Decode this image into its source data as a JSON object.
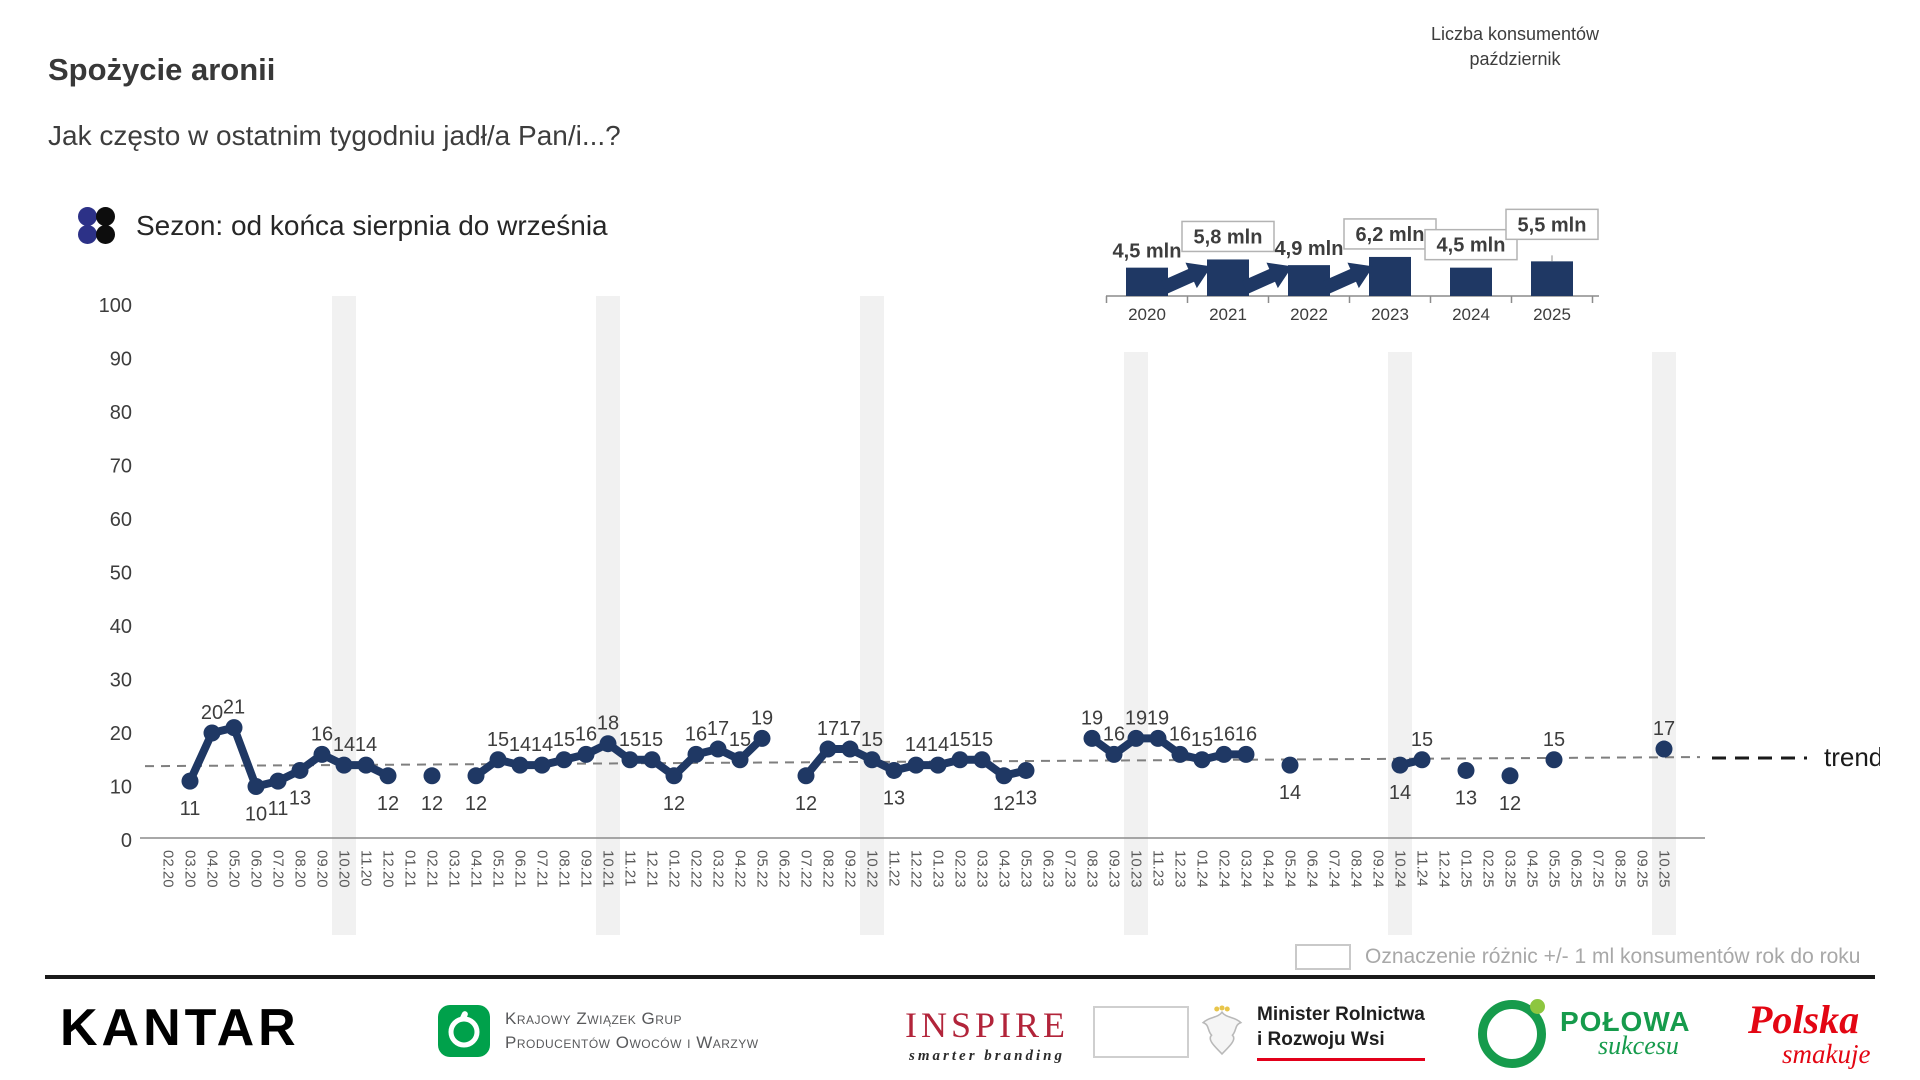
{
  "header": {
    "title": "Spożycie aronii",
    "subtitle": "Jak często w ostatnim tygodniu jadł/a Pan/i...?",
    "season_label": "Sezon: od końca sierpnia do września"
  },
  "colors": {
    "navy": "#1f3864",
    "icon_blue": "#2c3187",
    "icon_black": "#0d0d0d",
    "band_gray": "#f1f1f1",
    "axis_gray": "#8c8c8c",
    "label_dark": "#3d3d3d",
    "tick_gray": "#595959",
    "box_border": "#b3b3b3"
  },
  "chart_data": [
    {
      "type": "line",
      "x": [
        "02.20",
        "03.20",
        "04.20",
        "05.20",
        "06.20",
        "07.20",
        "08.20",
        "09.20",
        "10.20",
        "11.20",
        "12.20",
        "01.21",
        "02.21",
        "03.21",
        "04.21",
        "05.21",
        "06.21",
        "07.21",
        "08.21",
        "09.21",
        "10.21",
        "11.21",
        "12.21",
        "01.22",
        "02.22",
        "03.22",
        "04.22",
        "05.22",
        "06.22",
        "07.22",
        "08.22",
        "09.22",
        "10.22",
        "11.22",
        "12.22",
        "01.23",
        "02.23",
        "03.23",
        "04.23",
        "05.23",
        "06.23",
        "07.23",
        "08.23",
        "09.23",
        "10.23",
        "11.23",
        "12.23",
        "01.24",
        "02.24",
        "03.24",
        "04.24",
        "05.24",
        "06.24",
        "07.24",
        "08.24",
        "09.24",
        "10.24",
        "11.24",
        "12.24",
        "01.25",
        "02.25",
        "03.25",
        "04.25",
        "05.25",
        "06.25",
        "07.25",
        "08.25",
        "09.25",
        "10.25"
      ],
      "values": [
        null,
        11,
        20,
        21,
        10,
        11,
        13,
        16,
        14,
        14,
        12,
        null,
        12,
        null,
        12,
        15,
        14,
        14,
        15,
        16,
        18,
        15,
        15,
        12,
        16,
        17,
        15,
        19,
        null,
        12,
        17,
        17,
        15,
        13,
        14,
        14,
        15,
        15,
        12,
        13,
        null,
        null,
        19,
        16,
        19,
        19,
        16,
        15,
        16,
        16,
        null,
        14,
        null,
        null,
        null,
        null,
        14,
        15,
        null,
        13,
        null,
        12,
        null,
        15,
        null,
        null,
        null,
        null,
        17
      ],
      "label_below_months": [
        "03.20",
        "06.20",
        "07.20",
        "08.20",
        "12.20",
        "02.21",
        "04.21",
        "01.22",
        "07.22",
        "11.22",
        "04.23",
        "05.23",
        "05.24",
        "10.24",
        "01.25",
        "03.25"
      ],
      "october_bands": [
        "10.20",
        "10.21",
        "10.22",
        "10.23",
        "10.24",
        "10.25"
      ],
      "ylim": [
        0,
        100
      ],
      "ytick_step": 10,
      "trend": {
        "label": "trend",
        "start_value": 13.8,
        "end_value": 15.5
      },
      "note": "Oznaczenie różnic +/- 1 ml konsumentów rok do roku"
    },
    {
      "type": "bar",
      "title_line1": "Liczba konsumentów",
      "title_line2": "październik",
      "categories": [
        "2020",
        "2021",
        "2022",
        "2023",
        "2024",
        "2025"
      ],
      "values_mln": [
        4.5,
        5.8,
        4.9,
        6.2,
        4.5,
        5.5
      ],
      "labels": [
        "4,5 mln",
        "5,8 mln",
        "4,9 mln",
        "6,2 mln",
        "4,5 mln",
        "5,5 mln"
      ],
      "boxed": [
        false,
        true,
        false,
        true,
        true,
        true
      ],
      "connector": [
        false,
        false,
        false,
        false,
        false,
        true
      ],
      "arrow_after_index": [
        0,
        1,
        2
      ]
    }
  ],
  "footer": {
    "kantar_logo": "KANTAR",
    "kzg": {
      "line1": "Krajowy Związek Grup",
      "line2": "Producentów Owoców i Warzyw"
    },
    "inspire": {
      "name": "INSPIRE",
      "tagline": "smarter branding"
    },
    "minister": {
      "line1": "Minister Rolnictwa",
      "line2": "i Rozwoju Wsi"
    },
    "polowa": {
      "word1": "POŁOWA",
      "word2": "sukcesu"
    },
    "polska": {
      "word1": "Polska",
      "word2": "smakuje"
    }
  }
}
